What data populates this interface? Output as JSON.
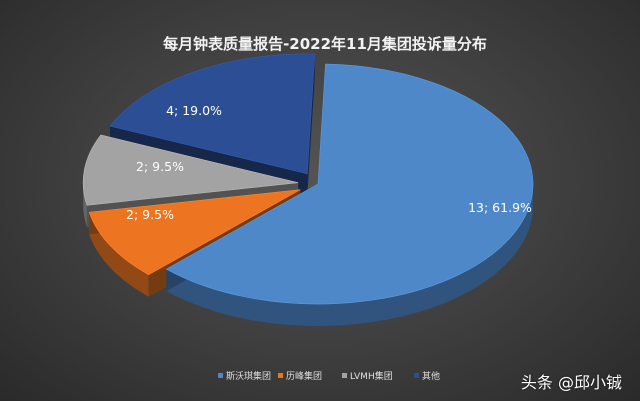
{
  "chart_data": {
    "type": "pie",
    "style": "3d-exploded",
    "title": "每月钟表质量报告-2022年11月集团投诉量分布",
    "slices": [
      {
        "name": "斯沃琪集团",
        "value": 13,
        "percent": "61.9%",
        "label": "13; 61.9%",
        "color": "#4e88c9"
      },
      {
        "name": "历峰集团",
        "value": 2,
        "percent": "9.5%",
        "label": "2; 9.5%",
        "color": "#ed7522"
      },
      {
        "name": "LVMH集团",
        "value": 2,
        "percent": "9.5%",
        "label": "2; 9.5%",
        "color": "#a3a3a3"
      },
      {
        "name": "其他",
        "value": 4,
        "percent": "19.0%",
        "label": "4; 19.0%",
        "color": "#2c4e94"
      }
    ],
    "legend_position": "bottom"
  },
  "watermark": "头条 @邱小铖"
}
